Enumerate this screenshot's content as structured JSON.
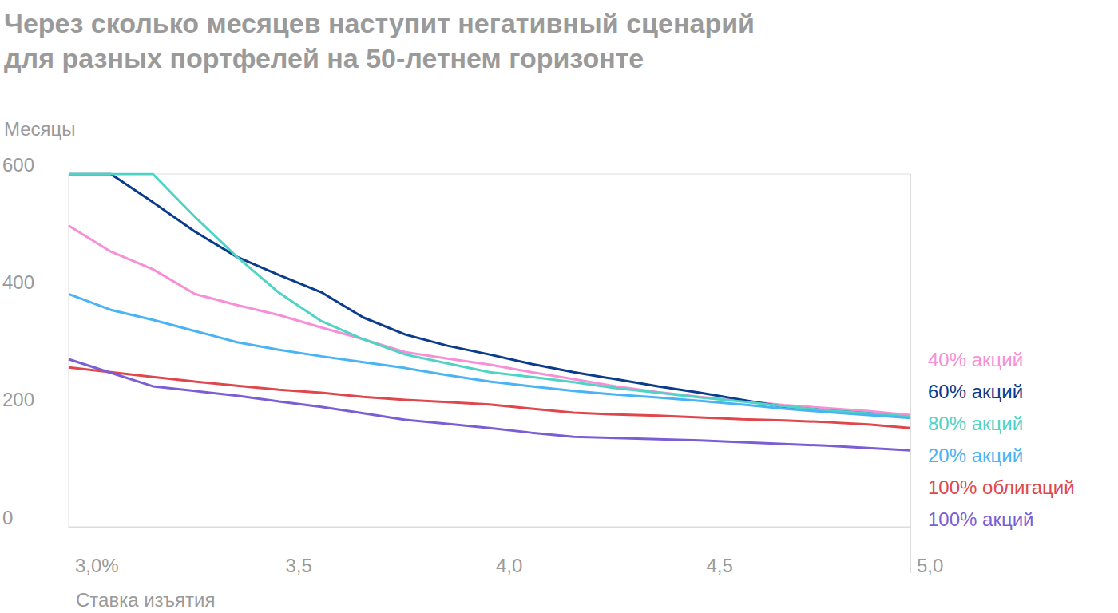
{
  "chart_data": {
    "type": "line",
    "title": "Через сколько месяцев наступит негативный сценарий\nдля разных портфелей на 50-летнем горизонте",
    "y_label": "Месяцы",
    "x_label": "Ставка изъятия",
    "x": [
      3.0,
      3.1,
      3.2,
      3.3,
      3.4,
      3.5,
      3.6,
      3.7,
      3.8,
      3.9,
      4.0,
      4.1,
      4.2,
      4.3,
      4.4,
      4.5,
      4.6,
      4.7,
      4.8,
      4.9,
      5.0
    ],
    "xlim": [
      3,
      5
    ],
    "xticks": [
      {
        "value": 3,
        "label": "3,0%"
      },
      {
        "value": 3.5,
        "label": "3,5"
      },
      {
        "value": 4,
        "label": "4,0"
      },
      {
        "value": 4.5,
        "label": "4,5"
      },
      {
        "value": 5,
        "label": "5,0"
      }
    ],
    "ylim": [
      0,
      600
    ],
    "yticks": [
      0,
      200,
      400,
      600
    ],
    "grid": true,
    "legend": "right",
    "series": [
      {
        "name": "40% акций",
        "color": "#f78fd6",
        "values": [
          512,
          468,
          438,
          396,
          377,
          360,
          339,
          319,
          297,
          286,
          276,
          263,
          251,
          239,
          229,
          221,
          214,
          207,
          202,
          197,
          190
        ]
      },
      {
        "name": "60% акций",
        "color": "#0b3b8c",
        "values": [
          600,
          600,
          552,
          502,
          459,
          428,
          399,
          356,
          327,
          308,
          293,
          277,
          263,
          251,
          239,
          228,
          216,
          204,
          198,
          193,
          186
        ]
      },
      {
        "name": "80% акций",
        "color": "#4fd3c4",
        "values": [
          600,
          600,
          600,
          527,
          459,
          398,
          350,
          319,
          293,
          278,
          263,
          255,
          246,
          236,
          228,
          220,
          213,
          205,
          198,
          193,
          187
        ]
      },
      {
        "name": "20% акций",
        "color": "#4ab3f4",
        "values": [
          396,
          369,
          352,
          333,
          314,
          301,
          290,
          280,
          270,
          258,
          247,
          239,
          231,
          225,
          220,
          214,
          208,
          201,
          195,
          190,
          185
        ]
      },
      {
        "name": "100% облигаций",
        "color": "#e0474c",
        "values": [
          271,
          263,
          255,
          247,
          240,
          233,
          228,
          221,
          216,
          212,
          208,
          201,
          194,
          191,
          189,
          186,
          183,
          181,
          178,
          174,
          168
        ]
      },
      {
        "name": "100% акций",
        "color": "#7b5ed6",
        "values": [
          285,
          262,
          239,
          231,
          223,
          213,
          204,
          193,
          182,
          175,
          168,
          160,
          153,
          151,
          149,
          147,
          144,
          141,
          138,
          134,
          130
        ]
      }
    ]
  }
}
